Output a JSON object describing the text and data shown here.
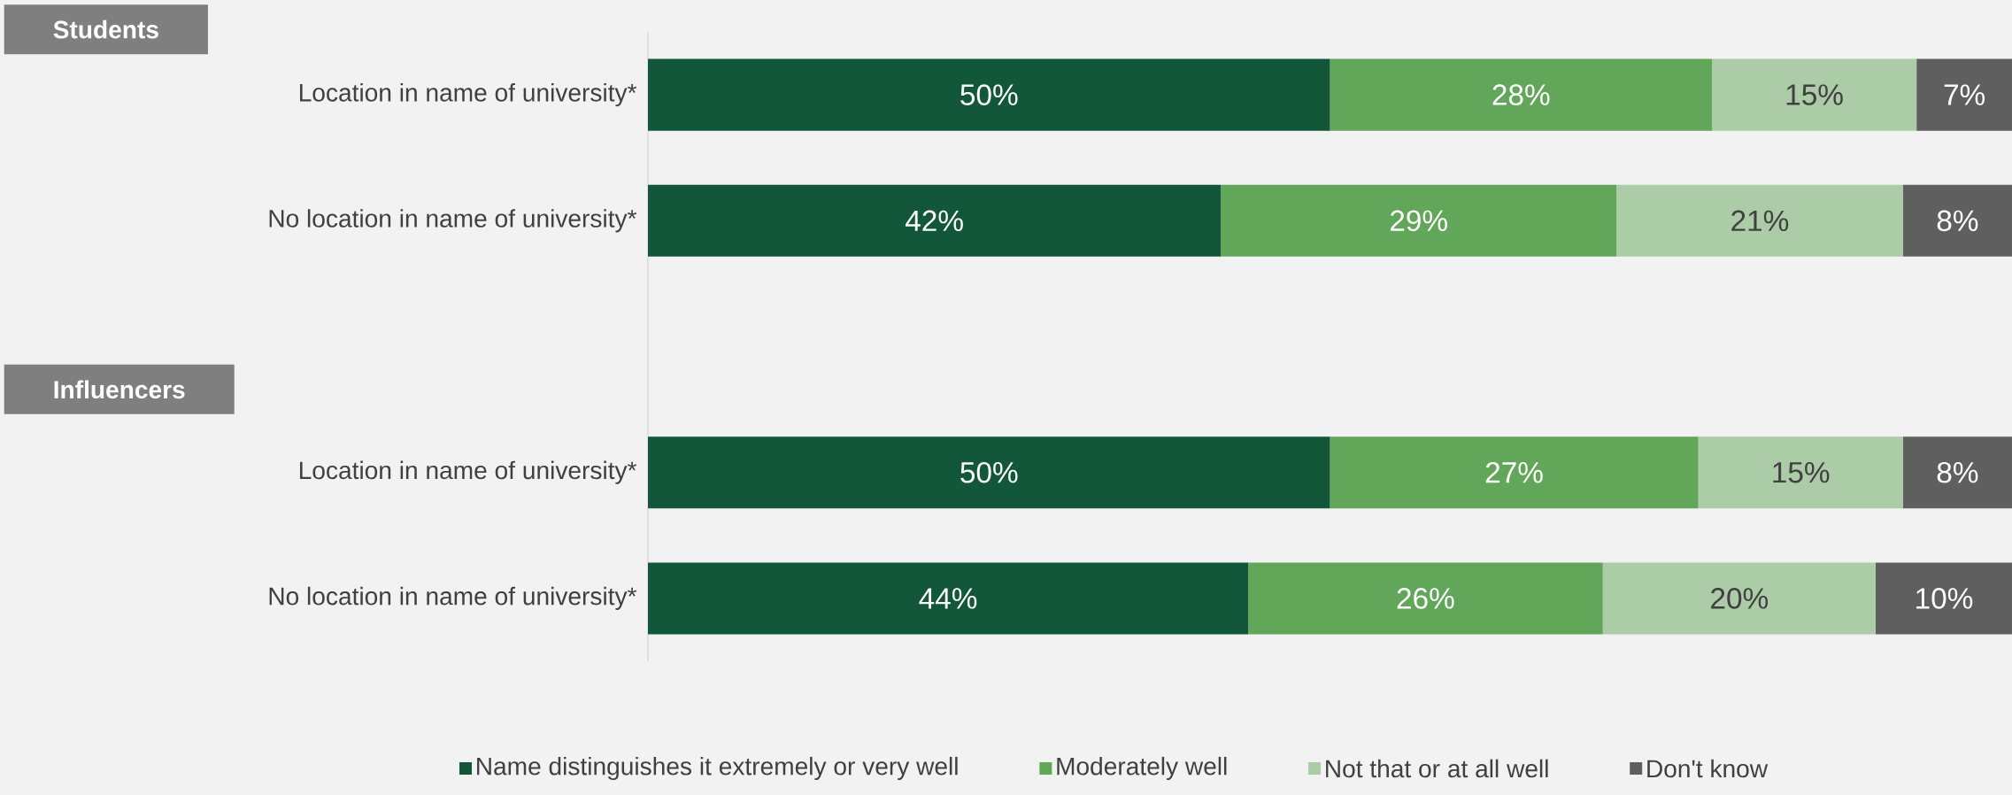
{
  "chart_data": {
    "type": "bar",
    "orientation": "horizontal",
    "stacked": true,
    "tick_labels": "y",
    "legend": "bottom",
    "categories": [
      "Location in name of university*",
      "No location in name of university*",
      null,
      "Location in name of university*",
      "No location in name of university*"
    ],
    "annotations": [
      "Students",
      "Influencers"
    ],
    "series": [
      {
        "name": "Name distinguishes it extremely or very well",
        "color": "#13573a",
        "values": [
          50,
          42,
          null,
          50,
          44
        ],
        "value_labels": [
          "50%",
          "42%",
          null,
          "50%",
          "44%"
        ]
      },
      {
        "name": "Moderately well",
        "color": "#62a65a",
        "values": [
          28,
          29,
          null,
          27,
          26
        ],
        "value_labels": [
          "28%",
          "29%",
          null,
          "27%",
          "26%"
        ]
      },
      {
        "name": "Not that or at all well",
        "color": "#abcca6",
        "values": [
          15,
          21,
          null,
          15,
          20
        ],
        "value_labels": [
          "15%",
          "21%",
          null,
          "15%",
          "20%"
        ]
      },
      {
        "name": "Don't know",
        "color": "#5f5f5f",
        "values": [
          7,
          8,
          null,
          8,
          10
        ],
        "value_labels": [
          "7%",
          "8%",
          null,
          "8%",
          "10%"
        ]
      }
    ]
  }
}
